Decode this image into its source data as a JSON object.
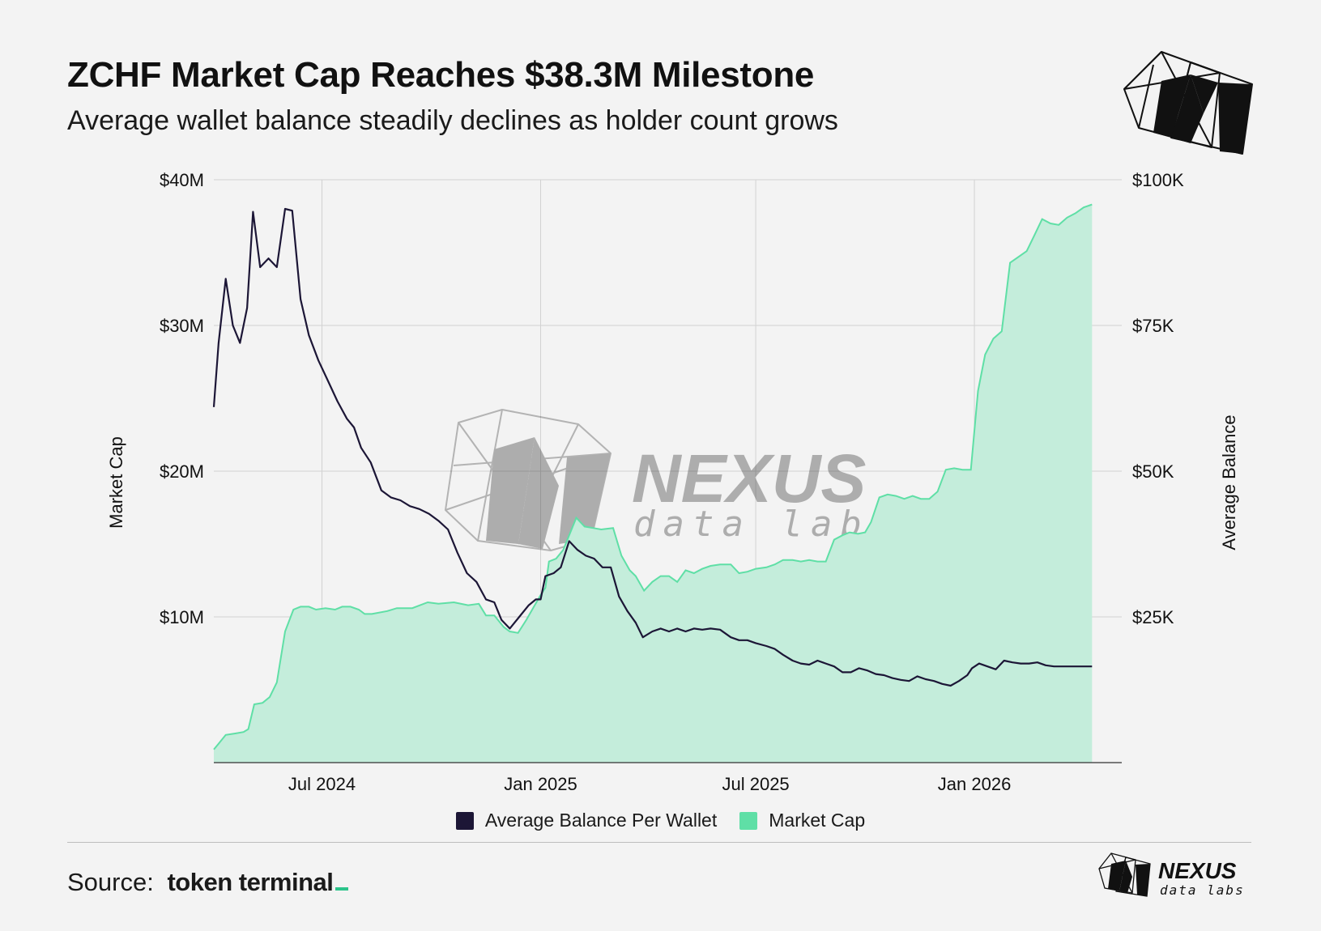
{
  "header": {
    "title": "ZCHF Market Cap Reaches $38.3M Milestone",
    "subtitle": "Average wallet balance steadily declines as holder count grows"
  },
  "brand": {
    "name": "NEXUS",
    "tagline": "data labs"
  },
  "footer": {
    "source_label": "Source:",
    "source_name": "token terminal"
  },
  "colors": {
    "market_cap": "#5fdfa6",
    "market_cap_fill": "#c4eddb",
    "avg_balance": "#1c1636",
    "background": "#f3f3f3"
  },
  "chart_data": {
    "type": "area",
    "x_start": "2024-04-01",
    "x_end": "2026-05-05",
    "x_ticks": [
      "2024-07-01",
      "2025-01-01",
      "2025-07-01",
      "2026-01-01"
    ],
    "x_tick_labels": [
      "Jul 2024",
      "Jan 2025",
      "Jul 2025",
      "Jan 2026"
    ],
    "ylabel_left": "Market Cap",
    "ylabel_right": "Average Balance",
    "ylim_left": [
      0,
      40000000
    ],
    "ylim_right": [
      0,
      100000
    ],
    "y_ticks_left": [
      "$10M",
      "$20M",
      "$30M",
      "$40M"
    ],
    "y_ticks_right": [
      "$25K",
      "$50K",
      "$75K",
      "$100K"
    ],
    "legend": [
      "Average Balance Per Wallet",
      "Market Cap"
    ],
    "series": [
      {
        "name": "Market Cap",
        "axis": "left",
        "unit": "$M",
        "points": [
          [
            "2024-04-01",
            0.9
          ],
          [
            "2024-04-05",
            1.3
          ],
          [
            "2024-04-11",
            1.9
          ],
          [
            "2024-04-19",
            2.0
          ],
          [
            "2024-04-26",
            2.1
          ],
          [
            "2024-04-30",
            2.3
          ],
          [
            "2024-05-05",
            4.0
          ],
          [
            "2024-05-12",
            4.1
          ],
          [
            "2024-05-18",
            4.5
          ],
          [
            "2024-05-24",
            5.5
          ],
          [
            "2024-05-31",
            9.0
          ],
          [
            "2024-06-07",
            10.5
          ],
          [
            "2024-06-13",
            10.7
          ],
          [
            "2024-06-20",
            10.7
          ],
          [
            "2024-06-26",
            10.5
          ],
          [
            "2024-07-04",
            10.6
          ],
          [
            "2024-07-12",
            10.5
          ],
          [
            "2024-07-18",
            10.7
          ],
          [
            "2024-07-25",
            10.7
          ],
          [
            "2024-08-01",
            10.5
          ],
          [
            "2024-08-06",
            10.2
          ],
          [
            "2024-08-12",
            10.2
          ],
          [
            "2024-08-25",
            10.4
          ],
          [
            "2024-09-02",
            10.6
          ],
          [
            "2024-09-15",
            10.6
          ],
          [
            "2024-09-28",
            11.0
          ],
          [
            "2024-10-07",
            10.9
          ],
          [
            "2024-10-20",
            11.0
          ],
          [
            "2024-11-01",
            10.8
          ],
          [
            "2024-11-10",
            10.9
          ],
          [
            "2024-11-16",
            10.1
          ],
          [
            "2024-11-23",
            10.1
          ],
          [
            "2024-12-01",
            9.3
          ],
          [
            "2024-12-06",
            9.0
          ],
          [
            "2024-12-13",
            8.9
          ],
          [
            "2024-12-20",
            9.8
          ],
          [
            "2024-12-27",
            10.8
          ],
          [
            "2025-01-01",
            11.5
          ],
          [
            "2025-01-05",
            12.0
          ],
          [
            "2025-01-08",
            13.8
          ],
          [
            "2025-01-14",
            14.0
          ],
          [
            "2025-01-20",
            14.6
          ],
          [
            "2025-01-26",
            15.8
          ],
          [
            "2025-01-31",
            16.8
          ],
          [
            "2025-02-07",
            16.2
          ],
          [
            "2025-02-14",
            16.1
          ],
          [
            "2025-02-21",
            16.0
          ],
          [
            "2025-03-03",
            16.1
          ],
          [
            "2025-03-10",
            14.2
          ],
          [
            "2025-03-17",
            13.2
          ],
          [
            "2025-03-22",
            12.8
          ],
          [
            "2025-03-29",
            11.8
          ],
          [
            "2025-04-05",
            12.4
          ],
          [
            "2025-04-12",
            12.8
          ],
          [
            "2025-04-19",
            12.8
          ],
          [
            "2025-04-26",
            12.4
          ],
          [
            "2025-05-03",
            13.2
          ],
          [
            "2025-05-10",
            13.0
          ],
          [
            "2025-05-17",
            13.3
          ],
          [
            "2025-05-24",
            13.5
          ],
          [
            "2025-06-01",
            13.6
          ],
          [
            "2025-06-10",
            13.6
          ],
          [
            "2025-06-17",
            13.0
          ],
          [
            "2025-06-24",
            13.1
          ],
          [
            "2025-07-01",
            13.3
          ],
          [
            "2025-07-10",
            13.4
          ],
          [
            "2025-07-17",
            13.6
          ],
          [
            "2025-07-24",
            13.9
          ],
          [
            "2025-08-01",
            13.9
          ],
          [
            "2025-08-08",
            13.8
          ],
          [
            "2025-08-15",
            13.9
          ],
          [
            "2025-08-22",
            13.8
          ],
          [
            "2025-08-29",
            13.8
          ],
          [
            "2025-09-05",
            15.3
          ],
          [
            "2025-09-12",
            15.6
          ],
          [
            "2025-09-18",
            15.8
          ],
          [
            "2025-09-25",
            15.7
          ],
          [
            "2025-10-01",
            15.8
          ],
          [
            "2025-10-06",
            16.5
          ],
          [
            "2025-10-13",
            18.2
          ],
          [
            "2025-10-20",
            18.4
          ],
          [
            "2025-10-27",
            18.3
          ],
          [
            "2025-11-03",
            18.1
          ],
          [
            "2025-11-10",
            18.3
          ],
          [
            "2025-11-17",
            18.1
          ],
          [
            "2025-11-24",
            18.1
          ],
          [
            "2025-12-01",
            18.6
          ],
          [
            "2025-12-08",
            20.1
          ],
          [
            "2025-12-15",
            20.2
          ],
          [
            "2025-12-22",
            20.1
          ],
          [
            "2025-12-29",
            20.1
          ],
          [
            "2026-01-04",
            25.5
          ],
          [
            "2026-01-10",
            28.0
          ],
          [
            "2026-01-17",
            29.1
          ],
          [
            "2026-01-24",
            29.6
          ],
          [
            "2026-01-31",
            34.3
          ],
          [
            "2026-02-07",
            34.7
          ],
          [
            "2026-02-14",
            35.1
          ],
          [
            "2026-02-20",
            36.1
          ],
          [
            "2026-02-27",
            37.3
          ],
          [
            "2026-03-06",
            37.0
          ],
          [
            "2026-03-13",
            36.9
          ],
          [
            "2026-03-20",
            37.4
          ],
          [
            "2026-03-27",
            37.7
          ],
          [
            "2026-04-03",
            38.1
          ],
          [
            "2026-04-10",
            38.3
          ]
        ]
      },
      {
        "name": "Average Balance Per Wallet",
        "axis": "right",
        "unit": "$K",
        "points": [
          [
            "2024-04-01",
            61.0
          ],
          [
            "2024-04-05",
            72.0
          ],
          [
            "2024-04-11",
            83.0
          ],
          [
            "2024-04-17",
            75.0
          ],
          [
            "2024-04-23",
            72.0
          ],
          [
            "2024-04-29",
            78.0
          ],
          [
            "2024-05-04",
            94.5
          ],
          [
            "2024-05-10",
            85.0
          ],
          [
            "2024-05-17",
            86.5
          ],
          [
            "2024-05-24",
            85.0
          ],
          [
            "2024-05-31",
            95.0
          ],
          [
            "2024-06-06",
            94.7
          ],
          [
            "2024-06-13",
            79.5
          ],
          [
            "2024-06-20",
            73.3
          ],
          [
            "2024-06-28",
            69.0
          ],
          [
            "2024-07-06",
            65.5
          ],
          [
            "2024-07-14",
            62.0
          ],
          [
            "2024-07-22",
            59.0
          ],
          [
            "2024-07-28",
            57.5
          ],
          [
            "2024-08-03",
            54.0
          ],
          [
            "2024-08-11",
            51.5
          ],
          [
            "2024-08-20",
            46.7
          ],
          [
            "2024-08-28",
            45.5
          ],
          [
            "2024-09-05",
            45.0
          ],
          [
            "2024-09-13",
            44.0
          ],
          [
            "2024-09-21",
            43.5
          ],
          [
            "2024-09-29",
            42.7
          ],
          [
            "2024-10-07",
            41.5
          ],
          [
            "2024-10-15",
            40.0
          ],
          [
            "2024-10-23",
            36.0
          ],
          [
            "2024-10-31",
            32.5
          ],
          [
            "2024-11-08",
            31.0
          ],
          [
            "2024-11-16",
            28.0
          ],
          [
            "2024-11-23",
            27.5
          ],
          [
            "2024-11-29",
            24.5
          ],
          [
            "2024-12-06",
            23.0
          ],
          [
            "2024-12-14",
            25.0
          ],
          [
            "2024-12-22",
            27.0
          ],
          [
            "2024-12-28",
            28.0
          ],
          [
            "2025-01-01",
            28.0
          ],
          [
            "2025-01-05",
            32.0
          ],
          [
            "2025-01-12",
            32.5
          ],
          [
            "2025-01-18",
            33.5
          ],
          [
            "2025-01-25",
            38.0
          ],
          [
            "2025-02-01",
            36.5
          ],
          [
            "2025-02-08",
            35.5
          ],
          [
            "2025-02-15",
            35.0
          ],
          [
            "2025-02-22",
            33.5
          ],
          [
            "2025-03-01",
            33.5
          ],
          [
            "2025-03-08",
            28.5
          ],
          [
            "2025-03-15",
            26.0
          ],
          [
            "2025-03-22",
            24.0
          ],
          [
            "2025-03-28",
            21.5
          ],
          [
            "2025-04-05",
            22.5
          ],
          [
            "2025-04-12",
            23.0
          ],
          [
            "2025-04-19",
            22.5
          ],
          [
            "2025-04-26",
            23.0
          ],
          [
            "2025-05-03",
            22.5
          ],
          [
            "2025-05-10",
            23.0
          ],
          [
            "2025-05-17",
            22.8
          ],
          [
            "2025-05-24",
            23.0
          ],
          [
            "2025-06-01",
            22.8
          ],
          [
            "2025-06-10",
            21.5
          ],
          [
            "2025-06-17",
            21.0
          ],
          [
            "2025-06-24",
            21.0
          ],
          [
            "2025-07-01",
            20.5
          ],
          [
            "2025-07-10",
            20.0
          ],
          [
            "2025-07-17",
            19.5
          ],
          [
            "2025-07-24",
            18.5
          ],
          [
            "2025-08-01",
            17.5
          ],
          [
            "2025-08-08",
            17.0
          ],
          [
            "2025-08-15",
            16.8
          ],
          [
            "2025-08-22",
            17.5
          ],
          [
            "2025-08-29",
            17.0
          ],
          [
            "2025-09-05",
            16.5
          ],
          [
            "2025-09-12",
            15.5
          ],
          [
            "2025-09-19",
            15.5
          ],
          [
            "2025-09-26",
            16.2
          ],
          [
            "2025-10-03",
            15.8
          ],
          [
            "2025-10-10",
            15.2
          ],
          [
            "2025-10-17",
            15.0
          ],
          [
            "2025-10-24",
            14.5
          ],
          [
            "2025-10-31",
            14.2
          ],
          [
            "2025-11-07",
            14.0
          ],
          [
            "2025-11-14",
            14.8
          ],
          [
            "2025-11-21",
            14.3
          ],
          [
            "2025-11-28",
            14.0
          ],
          [
            "2025-12-05",
            13.5
          ],
          [
            "2025-12-12",
            13.2
          ],
          [
            "2025-12-19",
            14.0
          ],
          [
            "2025-12-26",
            15.0
          ],
          [
            "2025-12-30",
            16.2
          ],
          [
            "2026-01-05",
            17.0
          ],
          [
            "2026-01-12",
            16.5
          ],
          [
            "2026-01-19",
            16.0
          ],
          [
            "2026-01-26",
            17.5
          ],
          [
            "2026-02-02",
            17.2
          ],
          [
            "2026-02-09",
            17.0
          ],
          [
            "2026-02-16",
            17.0
          ],
          [
            "2026-02-23",
            17.2
          ],
          [
            "2026-03-02",
            16.7
          ],
          [
            "2026-03-09",
            16.5
          ],
          [
            "2026-03-16",
            16.5
          ],
          [
            "2026-03-23",
            16.5
          ],
          [
            "2026-04-10",
            16.5
          ]
        ]
      }
    ]
  }
}
